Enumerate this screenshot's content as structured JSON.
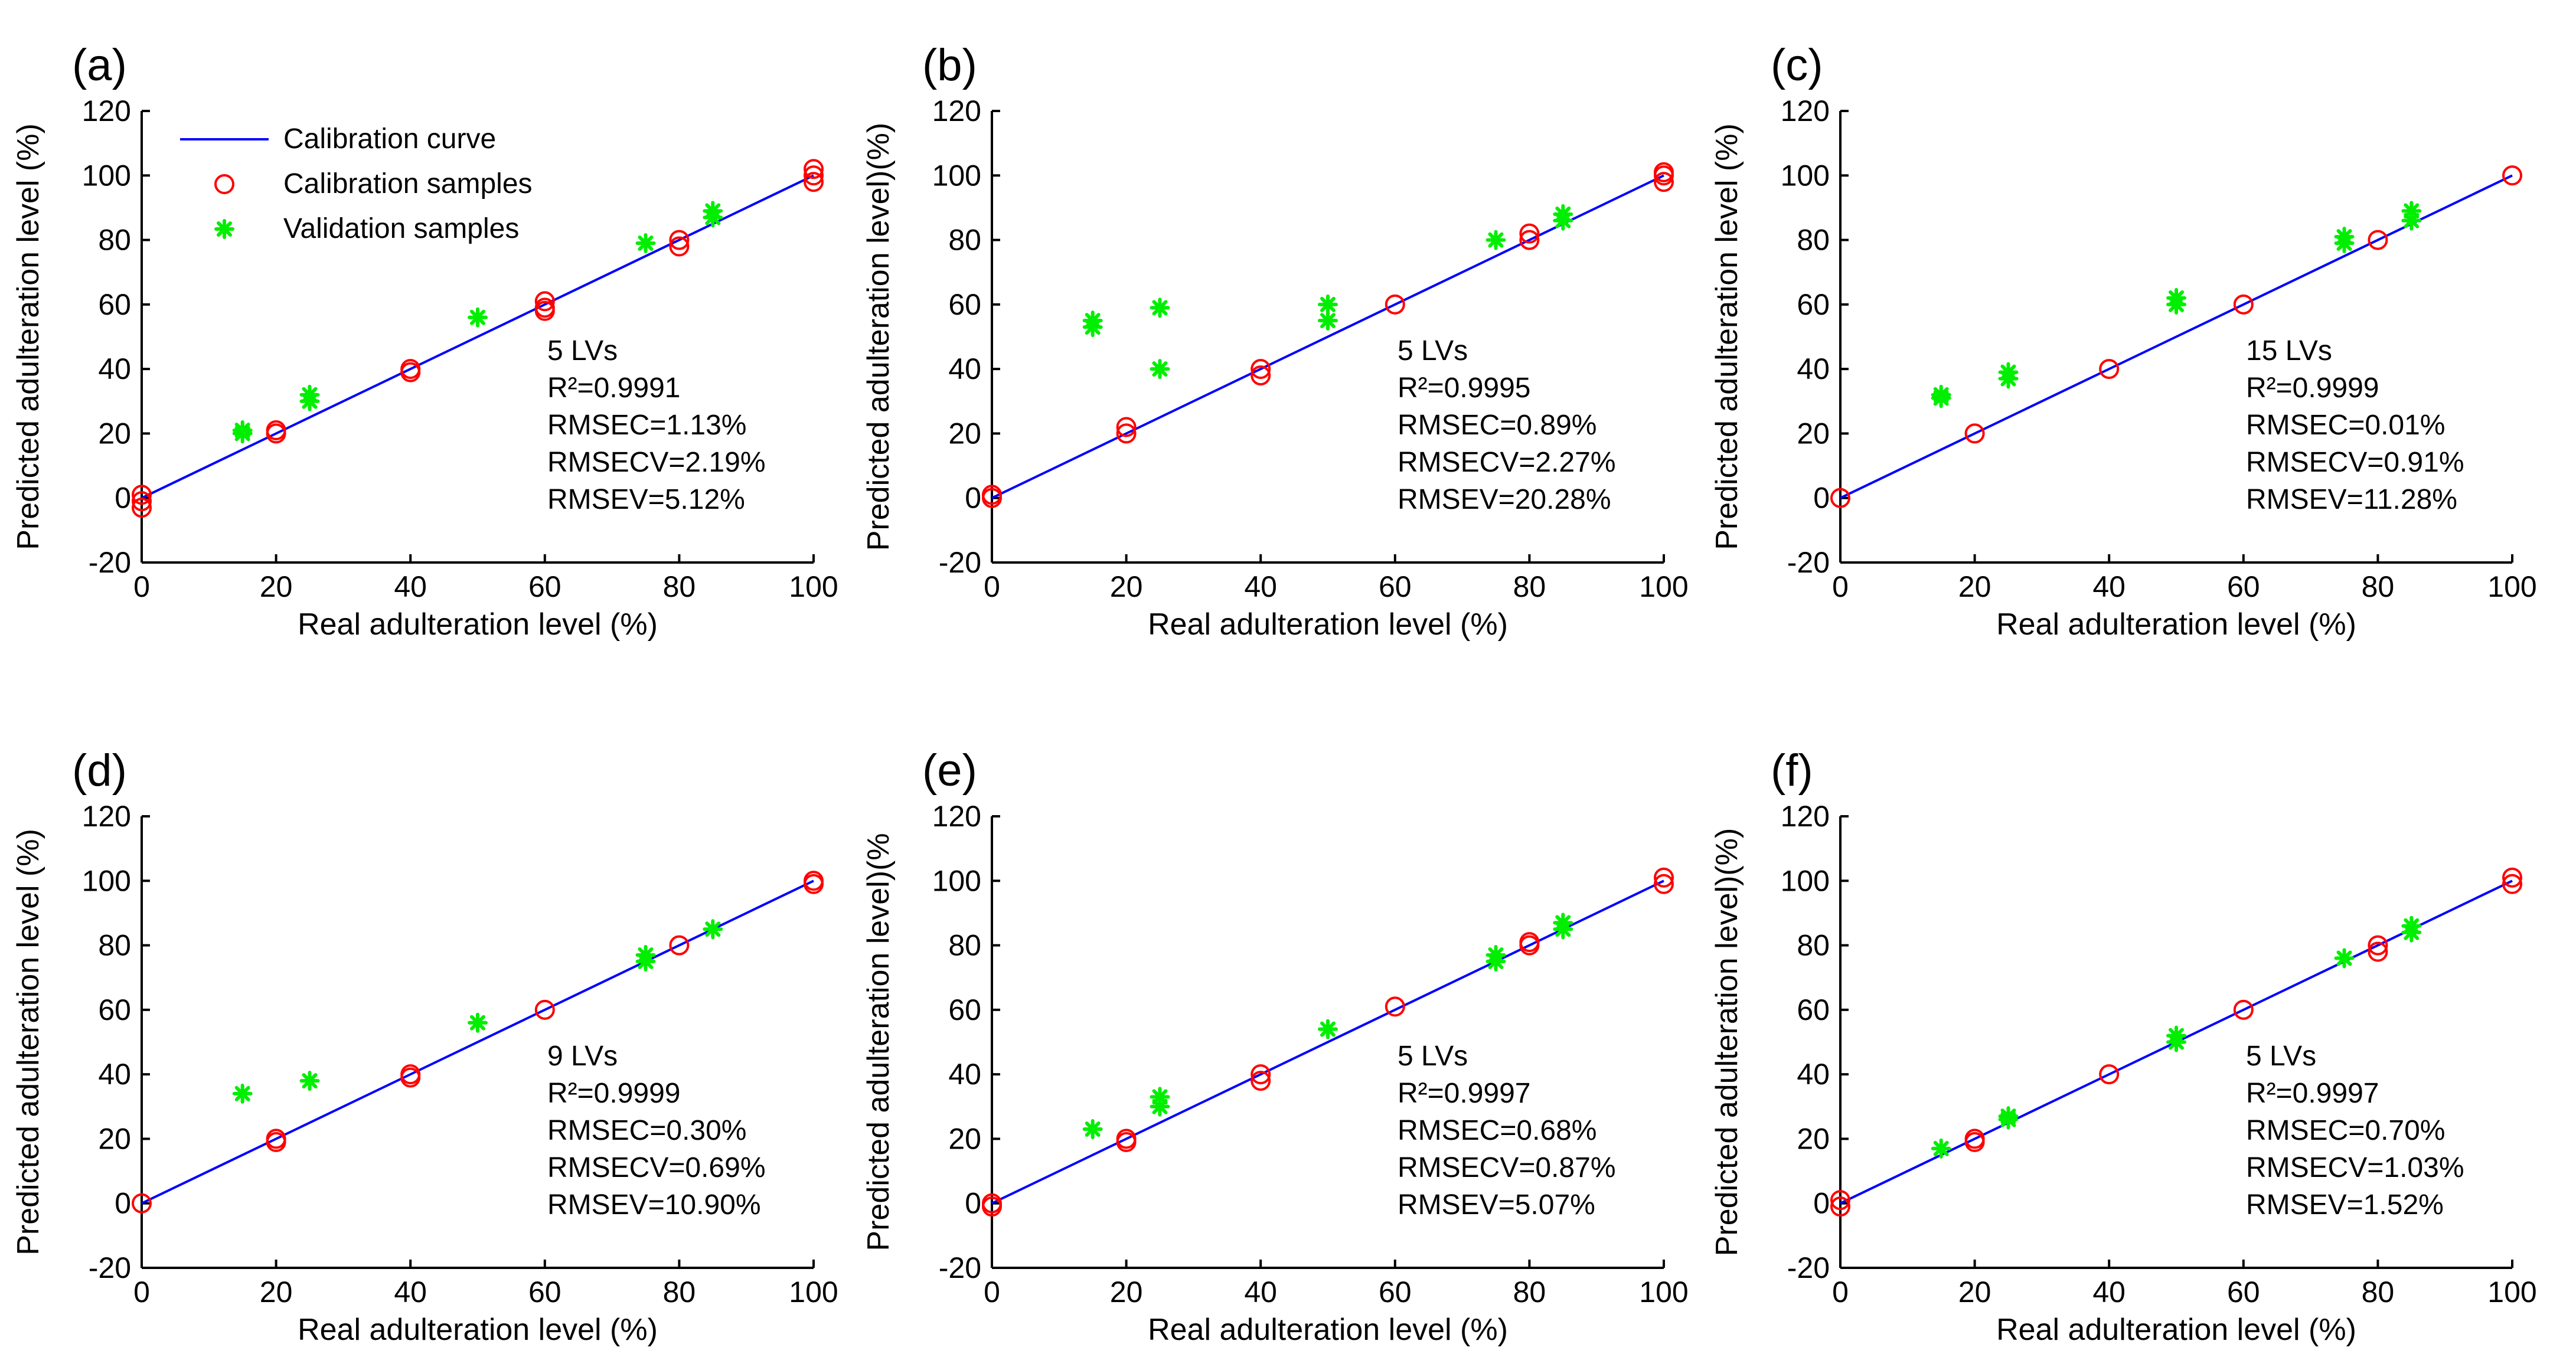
{
  "colors": {
    "calibration_curve": "#0000ff",
    "calibration_samples": "#ff0000",
    "validation_samples": "#00ee00"
  },
  "legend": {
    "placement": "top-left of panel (a)",
    "items": [
      "Calibration curve",
      "Calibration samples",
      "Validation samples"
    ]
  },
  "chart_data": [
    {
      "panel": "(a)",
      "type": "scatter",
      "xlabel": "Real adulteration level (%)",
      "ylabel": "Predicted adulteration level (%)",
      "xlim": [
        0,
        100
      ],
      "ylim": [
        -20,
        120
      ],
      "xticks": [
        "0",
        "20",
        "40",
        "60",
        "80",
        "100"
      ],
      "yticks": [
        "-20",
        "0",
        "20",
        "40",
        "60",
        "80",
        "100",
        "120"
      ],
      "stats": [
        "5 LVs",
        "R²=0.9991",
        "RMSEC=1.13%",
        "RMSECV=2.19%",
        "RMSEV=5.12%"
      ],
      "calibration_curve": [
        [
          0,
          0
        ],
        [
          100,
          100
        ]
      ],
      "series": [
        {
          "name": "Calibration samples",
          "x": [
            0,
            0,
            0,
            20,
            20,
            40,
            40,
            60,
            60,
            60,
            80,
            80,
            100,
            100,
            100
          ],
          "y": [
            1,
            -1,
            -3,
            21,
            20,
            40,
            39,
            61,
            59,
            58,
            80,
            78,
            102,
            100,
            98
          ]
        },
        {
          "name": "Validation samples",
          "x": [
            15,
            15,
            25,
            25,
            50,
            75,
            85,
            85
          ],
          "y": [
            21,
            20,
            32,
            30,
            56,
            79,
            89,
            87
          ]
        }
      ]
    },
    {
      "panel": "(b)",
      "type": "scatter",
      "xlabel": "Real adulteration level (%)",
      "ylabel": "Predicted adulteration level)(%)",
      "xlim": [
        0,
        100
      ],
      "ylim": [
        -20,
        120
      ],
      "xticks": [
        "0",
        "20",
        "40",
        "60",
        "80",
        "100"
      ],
      "yticks": [
        "-20",
        "0",
        "20",
        "40",
        "60",
        "80",
        "100",
        "120"
      ],
      "stats": [
        "5 LVs",
        "R²=0.9995",
        "RMSEC=0.89%",
        "RMSECV=2.27%",
        "RMSEV=20.28%"
      ],
      "calibration_curve": [
        [
          0,
          0
        ],
        [
          100,
          100
        ]
      ],
      "series": [
        {
          "name": "Calibration samples",
          "x": [
            0,
            0,
            20,
            20,
            40,
            40,
            60,
            80,
            80,
            100,
            100,
            100
          ],
          "y": [
            1,
            0,
            22,
            20,
            40,
            38,
            60,
            82,
            80,
            101,
            100,
            98
          ]
        },
        {
          "name": "Validation samples",
          "x": [
            15,
            15,
            25,
            25,
            50,
            50,
            75,
            85,
            85
          ],
          "y": [
            55,
            53,
            59,
            40,
            60,
            55,
            80,
            88,
            86
          ]
        }
      ]
    },
    {
      "panel": "(c)",
      "type": "scatter",
      "xlabel": "Real adulteration level (%)",
      "ylabel": "Predicted adulteration level (%)",
      "xlim": [
        0,
        100
      ],
      "ylim": [
        -20,
        120
      ],
      "xticks": [
        "0",
        "20",
        "40",
        "60",
        "80",
        "100"
      ],
      "yticks": [
        "-20",
        "0",
        "20",
        "40",
        "60",
        "80",
        "100",
        "120"
      ],
      "stats": [
        "15 LVs",
        "R²=0.9999",
        "RMSEC=0.01%",
        "RMSECV=0.91%",
        "RMSEV=11.28%"
      ],
      "calibration_curve": [
        [
          0,
          0
        ],
        [
          100,
          100
        ]
      ],
      "series": [
        {
          "name": "Calibration samples",
          "x": [
            0,
            20,
            40,
            60,
            80,
            100
          ],
          "y": [
            0,
            20,
            40,
            60,
            80,
            100
          ]
        },
        {
          "name": "Validation samples",
          "x": [
            15,
            15,
            25,
            25,
            50,
            50,
            75,
            75,
            85,
            85
          ],
          "y": [
            32,
            31,
            39,
            37,
            62,
            60,
            81,
            79,
            89,
            86
          ]
        }
      ]
    },
    {
      "panel": "(d)",
      "type": "scatter",
      "xlabel": "Real adulteration level (%)",
      "ylabel": "Predicted adulteration level (%)",
      "xlim": [
        0,
        100
      ],
      "ylim": [
        -20,
        120
      ],
      "xticks": [
        "0",
        "20",
        "40",
        "60",
        "80",
        "100"
      ],
      "yticks": [
        "-20",
        "0",
        "20",
        "40",
        "60",
        "80",
        "100",
        "120"
      ],
      "stats": [
        "9 LVs",
        "R²=0.9999",
        "RMSEC=0.30%",
        "RMSECV=0.69%",
        "RMSEV=10.90%"
      ],
      "calibration_curve": [
        [
          0,
          0
        ],
        [
          100,
          100
        ]
      ],
      "series": [
        {
          "name": "Calibration samples",
          "x": [
            0,
            20,
            20,
            40,
            40,
            60,
            80,
            100,
            100
          ],
          "y": [
            0,
            20,
            19,
            40,
            39,
            60,
            80,
            100,
            99
          ]
        },
        {
          "name": "Validation samples",
          "x": [
            15,
            25,
            50,
            75,
            75,
            85
          ],
          "y": [
            34,
            38,
            56,
            77,
            75,
            85
          ]
        }
      ]
    },
    {
      "panel": "(e)",
      "type": "scatter",
      "xlabel": "Real adulteration level (%)",
      "ylabel": "Predicted adulteration level)(%",
      "xlim": [
        0,
        100
      ],
      "ylim": [
        -20,
        120
      ],
      "xticks": [
        "0",
        "20",
        "40",
        "60",
        "80",
        "100"
      ],
      "yticks": [
        "-20",
        "0",
        "20",
        "40",
        "60",
        "80",
        "100",
        "120"
      ],
      "stats": [
        "5 LVs",
        "R²=0.9997",
        "RMSEC=0.68%",
        "RMSECV=0.87%",
        "RMSEV=5.07%"
      ],
      "calibration_curve": [
        [
          0,
          0
        ],
        [
          100,
          100
        ]
      ],
      "series": [
        {
          "name": "Calibration samples",
          "x": [
            0,
            0,
            20,
            20,
            40,
            40,
            60,
            80,
            80,
            100,
            100
          ],
          "y": [
            0,
            -1,
            20,
            19,
            40,
            38,
            61,
            81,
            80,
            101,
            99
          ]
        },
        {
          "name": "Validation samples",
          "x": [
            15,
            25,
            25,
            50,
            75,
            75,
            85,
            85
          ],
          "y": [
            23,
            33,
            30,
            54,
            77,
            75,
            87,
            85
          ]
        }
      ]
    },
    {
      "panel": "(f)",
      "type": "scatter",
      "xlabel": "Real adulteration level (%)",
      "ylabel": "Predicted adulteration level)(%)",
      "xlim": [
        0,
        100
      ],
      "ylim": [
        -20,
        120
      ],
      "xticks": [
        "0",
        "20",
        "40",
        "60",
        "80",
        "100"
      ],
      "yticks": [
        "-20",
        "0",
        "20",
        "40",
        "60",
        "80",
        "100",
        "120"
      ],
      "stats": [
        "5 LVs",
        "R²=0.9997",
        "RMSEC=0.70%",
        "RMSECV=1.03%",
        "RMSEV=1.52%"
      ],
      "calibration_curve": [
        [
          0,
          0
        ],
        [
          100,
          100
        ]
      ],
      "series": [
        {
          "name": "Calibration samples",
          "x": [
            0,
            0,
            20,
            20,
            40,
            60,
            80,
            80,
            100,
            100
          ],
          "y": [
            1,
            -1,
            20,
            19,
            40,
            60,
            80,
            78,
            101,
            99
          ]
        },
        {
          "name": "Validation samples",
          "x": [
            15,
            25,
            25,
            50,
            50,
            75,
            85,
            85
          ],
          "y": [
            17,
            27,
            26,
            52,
            50,
            76,
            86,
            84
          ]
        }
      ]
    }
  ]
}
